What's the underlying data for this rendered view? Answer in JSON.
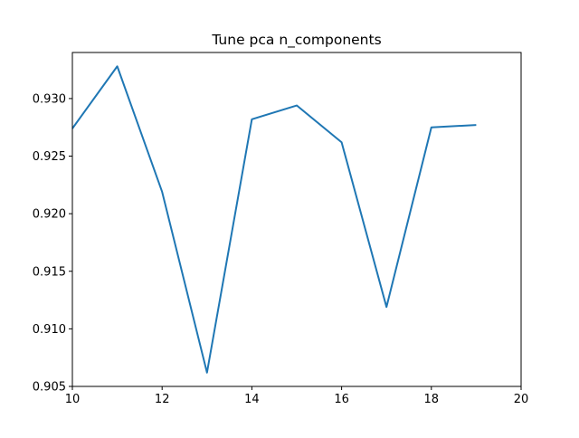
{
  "chart_data": {
    "type": "line",
    "title": "Tune pca n_components",
    "xlabel": "",
    "ylabel": "",
    "xlim": [
      10,
      20
    ],
    "ylim": [
      0.905,
      0.934
    ],
    "x_ticks": [
      10,
      12,
      14,
      16,
      18,
      20
    ],
    "x_tick_labels": [
      "10",
      "12",
      "14",
      "16",
      "18",
      "20"
    ],
    "y_ticks": [
      0.905,
      0.91,
      0.915,
      0.92,
      0.925,
      0.93
    ],
    "y_tick_labels": [
      "0.905",
      "0.910",
      "0.915",
      "0.920",
      "0.925",
      "0.930"
    ],
    "grid": false,
    "legend": "none",
    "series": [
      {
        "color": "#1f77b4",
        "x": [
          10,
          11,
          12,
          13,
          14,
          15,
          16,
          17,
          18,
          19
        ],
        "y": [
          0.9274,
          0.9328,
          0.9219,
          0.9062,
          0.9282,
          0.9294,
          0.9262,
          0.9119,
          0.9275,
          0.9277
        ]
      }
    ]
  }
}
